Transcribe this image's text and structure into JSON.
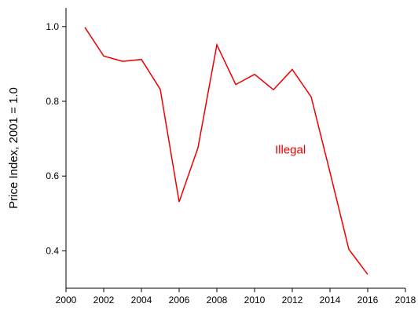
{
  "chart_data": {
    "type": "line",
    "title": "",
    "xlabel": "",
    "ylabel": "Price Index, 2001 = 1.0",
    "xlim": [
      2000,
      2018
    ],
    "ylim": [
      0.3,
      1.05
    ],
    "x_ticks": [
      2000,
      2002,
      2004,
      2006,
      2008,
      2010,
      2012,
      2014,
      2016,
      2018
    ],
    "y_ticks": [
      0.4,
      0.6,
      0.8,
      1.0
    ],
    "y_tick_labels": [
      "0.4",
      "0.6",
      "0.8",
      "1.0"
    ],
    "grid": false,
    "series": [
      {
        "name": "Illegal",
        "color": "#ee0000",
        "x": [
          2001,
          2002,
          2003,
          2004,
          2005,
          2006,
          2007,
          2008,
          2009,
          2010,
          2011,
          2012,
          2013,
          2014,
          2015,
          2016
        ],
        "y": [
          0.998,
          0.921,
          0.907,
          0.912,
          0.832,
          0.531,
          0.676,
          0.951,
          0.845,
          0.872,
          0.831,
          0.885,
          0.812,
          0.61,
          0.404,
          0.337
        ]
      }
    ],
    "annotations": [
      {
        "text": "Illegal",
        "x": 2011.9,
        "y": 0.66,
        "color": "#ee0000"
      }
    ]
  }
}
